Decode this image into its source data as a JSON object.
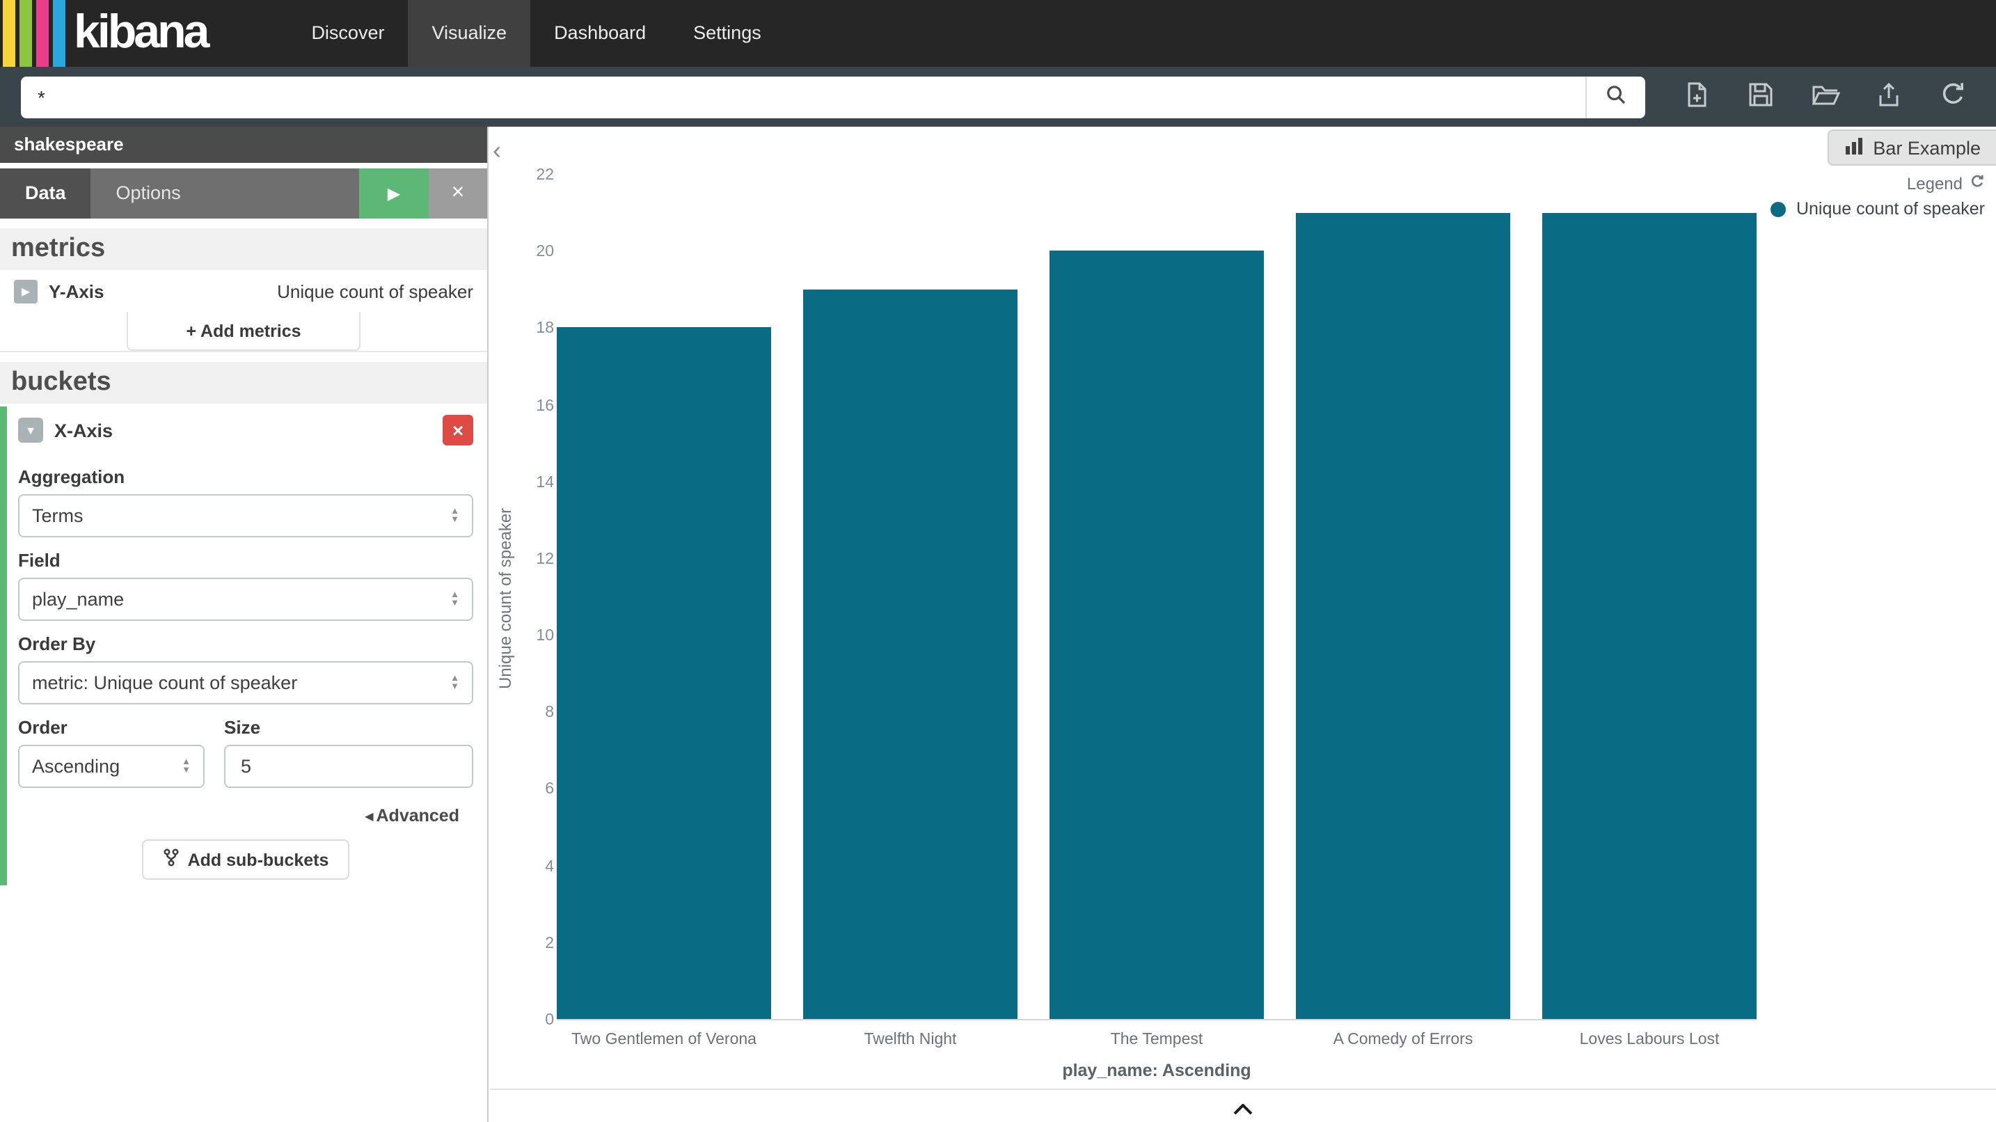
{
  "navbar": {
    "brand": "kibana",
    "items": [
      {
        "label": "Discover",
        "active": false
      },
      {
        "label": "Visualize",
        "active": true
      },
      {
        "label": "Dashboard",
        "active": false
      },
      {
        "label": "Settings",
        "active": false
      }
    ],
    "logo_stripe_colors": [
      "#f4d63b",
      "#8dc540",
      "#e83e8c",
      "#2aa8dd"
    ]
  },
  "searchbar": {
    "query": "*",
    "icons": [
      "search-icon",
      "new-visualization-icon",
      "save-icon",
      "open-icon",
      "share-icon",
      "refresh-icon"
    ]
  },
  "sidebar": {
    "index_title": "shakespeare",
    "tabs": [
      {
        "label": "Data",
        "active": true
      },
      {
        "label": "Options",
        "active": false
      }
    ],
    "metrics": {
      "heading": "metrics",
      "y_axis_label": "Y-Axis",
      "y_axis_value": "Unique count of speaker",
      "add_button": "+ Add metrics"
    },
    "buckets": {
      "heading": "buckets",
      "panel": {
        "title": "X-Axis",
        "aggregation_label": "Aggregation",
        "aggregation_value": "Terms",
        "field_label": "Field",
        "field_value": "play_name",
        "order_by_label": "Order By",
        "order_by_value": "metric: Unique count of speaker",
        "order_label": "Order",
        "order_value": "Ascending",
        "size_label": "Size",
        "size_value": "5",
        "advanced_link": "Advanced",
        "add_sub_buckets_button": "Add sub-buckets"
      }
    },
    "accent_color": "#5cb874"
  },
  "content": {
    "vis_name": "Bar Example",
    "legend_title": "Legend",
    "legend_items": [
      {
        "label": "Unique count of speaker",
        "color": "#0a6b84"
      }
    ]
  },
  "chart_data": {
    "type": "bar",
    "title": "Bar Example",
    "categories": [
      "Two Gentlemen of Verona",
      "Twelfth Night",
      "The Tempest",
      "A Comedy of Errors",
      "Loves Labours Lost"
    ],
    "values": [
      18,
      19,
      20,
      21,
      21
    ],
    "series": [
      {
        "name": "Unique count of speaker",
        "values": [
          18,
          19,
          20,
          21,
          21
        ]
      }
    ],
    "xlabel": "play_name: Ascending",
    "ylabel": "Unique count of speaker",
    "ylim": [
      0,
      22
    ],
    "ytick_step": 2,
    "grid": false,
    "legend_position": "top-right",
    "bar_color": "#0a6b84"
  }
}
